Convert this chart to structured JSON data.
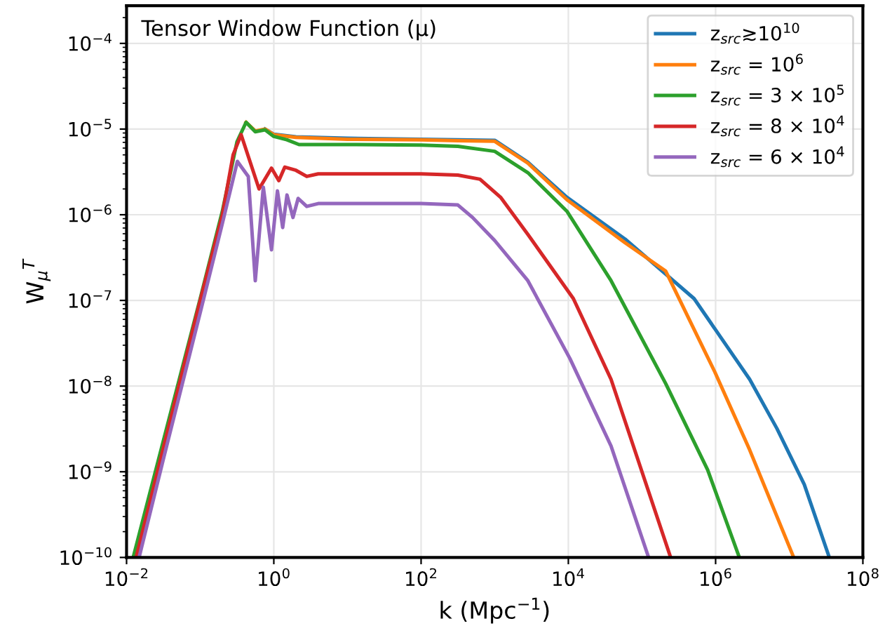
{
  "chart_data": {
    "type": "line",
    "title": "Tensor Window Function (μ)",
    "xlabel": "k (Mpc$^{−1}$)",
    "ylabel": "W$_{μ}$$^{T}$",
    "log": "xy",
    "grid": true,
    "legend": "top right",
    "line_style": "solid",
    "marker": "none",
    "xlim": [
      0.01,
      100000000
    ],
    "ylim": [
      1e-10,
      0.000275
    ],
    "xticks": [
      {
        "value": 0.01,
        "label": "10$^{−2}$"
      },
      {
        "value": 1,
        "label": "10$^{0}$"
      },
      {
        "value": 100,
        "label": "10$^{2}$"
      },
      {
        "value": 10000,
        "label": "10$^{4}$"
      },
      {
        "value": 1000000,
        "label": "10$^{6}$"
      },
      {
        "value": 100000000,
        "label": "10$^{8}$"
      }
    ],
    "yticks": [
      {
        "value": 1e-10,
        "label": "10$^{−10}$"
      },
      {
        "value": 1e-09,
        "label": "10$^{−9}$"
      },
      {
        "value": 1e-08,
        "label": "10$^{−8}$"
      },
      {
        "value": 1e-07,
        "label": "10$^{−7}$"
      },
      {
        "value": 1e-06,
        "label": "10$^{−6}$"
      },
      {
        "value": 1e-05,
        "label": "10$^{−5}$"
      },
      {
        "value": 0.0001,
        "label": "10$^{−4}$"
      }
    ],
    "series": [
      {
        "name": "z$_{src}$≳10$^{10}$",
        "color": "#1f77b4",
        "x": [
          0.76,
          1.0,
          2.0,
          10,
          100,
          316,
          1000,
          2818,
          9550,
          59000,
          510000,
          2900000,
          6800000,
          16000000,
          35000000
        ],
        "values": [
          1e-05,
          8.7e-06,
          8.1e-06,
          7.8e-06,
          7.6e-06,
          7.5e-06,
          7.4e-06,
          4.1e-06,
          1.6e-06,
          5.2e-07,
          1.05e-07,
          1.2e-08,
          3.2e-09,
          7.1e-10,
          1e-10
        ]
      },
      {
        "name": "z$_{src}$ = 10$^{6}$",
        "color": "#ff7f0e",
        "x": [
          0.42,
          0.56,
          0.76,
          1.0,
          2.0,
          10,
          100,
          316,
          1000,
          2818,
          9550,
          59000,
          210000,
          980000,
          2900000,
          11500000
        ],
        "values": [
          1.2e-05,
          9.5e-06,
          1e-05,
          8.6e-06,
          8e-06,
          7.6e-06,
          7.5e-06,
          7.3e-06,
          7.2e-06,
          4e-06,
          1.5e-06,
          4.7e-07,
          2.2e-07,
          1.45e-08,
          1.8e-09,
          1e-10
        ]
      },
      {
        "name": "z$_{src}$ = 3 × 10$^{5}$",
        "color": "#2ca02c",
        "x": [
          0.0123,
          0.0316,
          0.1,
          0.2,
          0.316,
          0.42,
          0.56,
          0.76,
          1.0,
          1.5,
          2.2,
          10,
          100,
          316,
          1000,
          2818,
          9550,
          38000,
          210000,
          780000,
          2100000
        ],
        "values": [
          1e-10,
          2.3e-09,
          1.05e-07,
          1.1e-06,
          7.1e-06,
          1.2e-05,
          9.3e-06,
          9.8e-06,
          8.2e-06,
          7.5e-06,
          6.6e-06,
          6.6e-06,
          6.5e-06,
          6.3e-06,
          5.5e-06,
          3.1e-06,
          1.1e-06,
          1.7e-07,
          1.07e-08,
          1.05e-09,
          1e-10
        ]
      },
      {
        "name": "z$_{src}$ = 8 × 10$^{4}$",
        "color": "#d62728",
        "x": [
          0.0135,
          0.0316,
          0.1,
          0.2,
          0.28,
          0.36,
          0.63,
          0.93,
          1.17,
          1.41,
          2.0,
          2.8,
          4.0,
          100,
          316,
          631,
          1200,
          2818,
          11700,
          38000,
          245000
        ],
        "values": [
          1e-10,
          1.9e-09,
          1e-07,
          1e-06,
          5e-06,
          8.6e-06,
          2e-06,
          3.5e-06,
          2.5e-06,
          3.6e-06,
          3.3e-06,
          2.8e-06,
          3e-06,
          3e-06,
          2.9e-06,
          2.6e-06,
          1.6e-06,
          5.9e-07,
          1.05e-07,
          1.2e-08,
          1e-10
        ]
      },
      {
        "name": "z$_{src}$ = 6 × 10$^{4}$",
        "color": "#9467bd",
        "x": [
          0.0148,
          0.0316,
          0.1,
          0.2,
          0.32,
          0.45,
          0.56,
          0.72,
          0.93,
          1.12,
          1.32,
          1.51,
          1.82,
          2.14,
          2.8,
          4.0,
          100,
          316,
          500,
          1000,
          2818,
          10500,
          38000,
          123000
        ],
        "values": [
          1e-10,
          1.4e-09,
          7.2e-08,
          7.9e-07,
          4.2e-06,
          2.8e-06,
          1.7e-07,
          2.1e-06,
          3.9e-07,
          1.9e-06,
          7.1e-07,
          1.7e-06,
          9.3e-07,
          1.55e-06,
          1.25e-06,
          1.35e-06,
          1.35e-06,
          1.3e-06,
          9.3e-07,
          5e-07,
          1.7e-07,
          2.1e-08,
          2e-09,
          1e-10
        ]
      }
    ]
  }
}
